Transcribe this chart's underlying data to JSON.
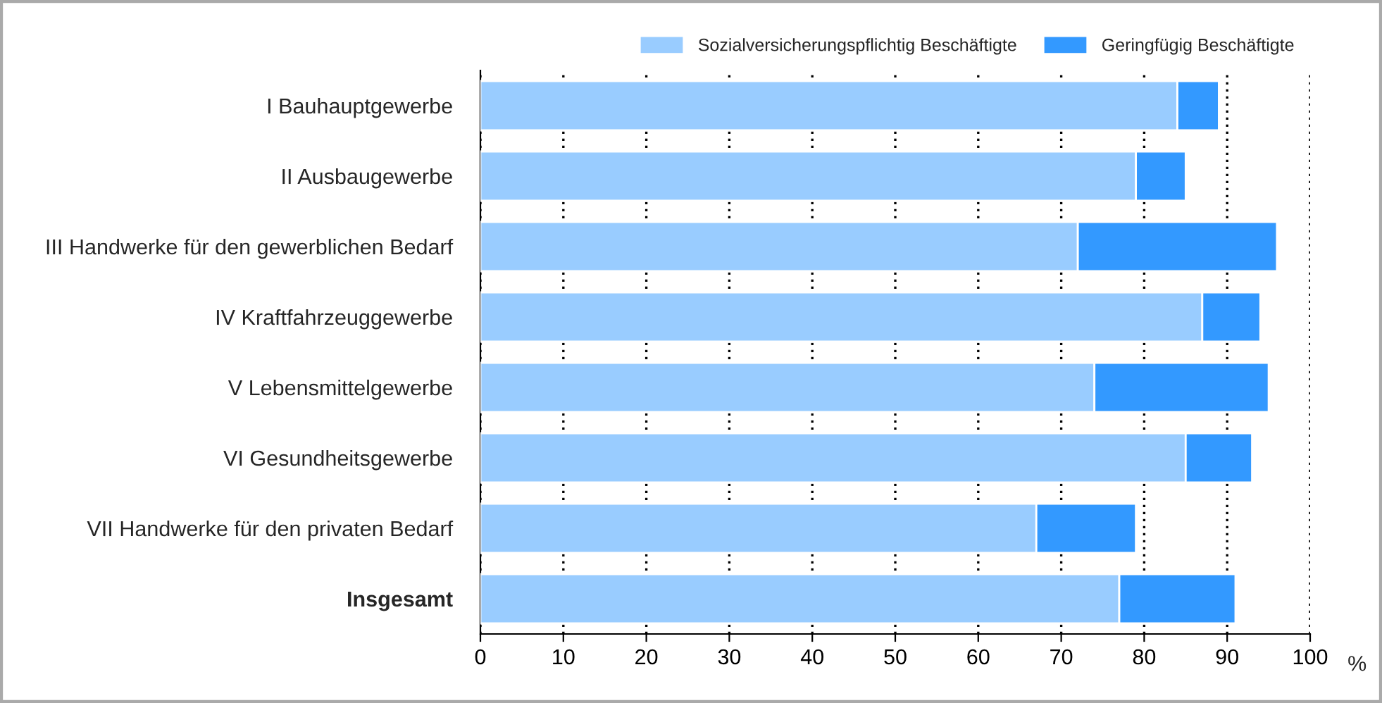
{
  "chart_data": {
    "type": "bar",
    "orientation": "horizontal",
    "stacked": true,
    "categories": [
      "I Bauhauptgewerbe",
      "II Ausbaugewerbe",
      "III Handwerke für den gewerblichen Bedarf",
      "IV Kraftfahrzeuggewerbe",
      "V Lebensmittelgewerbe",
      "VI Gesundheitsgewerbe",
      "VII Handwerke für den privaten Bedarf",
      "Insgesamt"
    ],
    "series": [
      {
        "name": "Sozialversicherungspflichtig Beschäftigte",
        "color": "#99ccff",
        "values": [
          84,
          79,
          72,
          87,
          74,
          85,
          67,
          77
        ]
      },
      {
        "name": "Geringfügig Beschäftigte",
        "color": "#3399ff",
        "values": [
          5,
          6,
          24,
          7,
          21,
          8,
          12,
          14
        ]
      }
    ],
    "xlabel": "%",
    "xlim": [
      0,
      100
    ],
    "xticks": [
      0,
      10,
      20,
      30,
      40,
      50,
      60,
      70,
      80,
      90,
      100
    ],
    "grid": "x",
    "legend": "top right"
  }
}
